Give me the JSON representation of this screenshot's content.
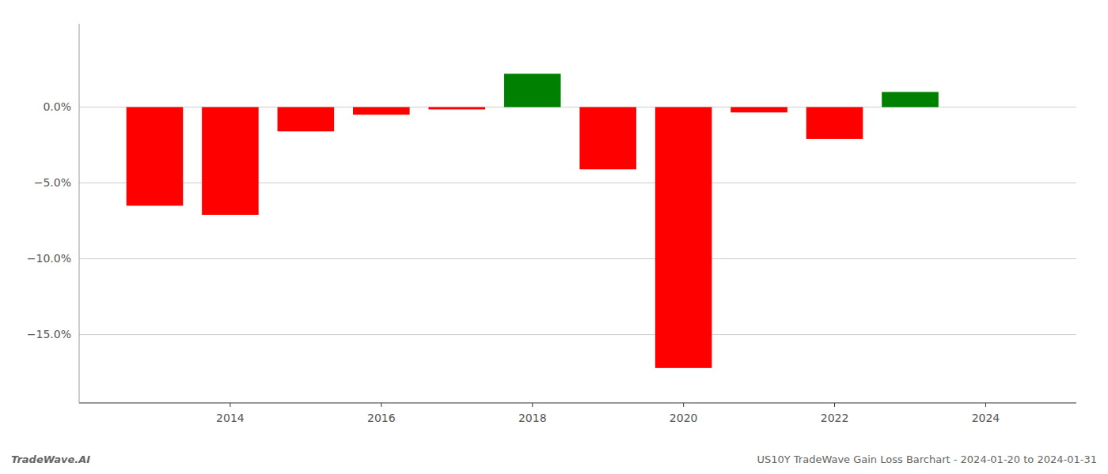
{
  "chart_data": {
    "type": "bar",
    "x": [
      2013,
      2014,
      2015,
      2016,
      2017,
      2018,
      2019,
      2020,
      2021,
      2022,
      2023
    ],
    "values": [
      -6.5,
      -7.1,
      -1.6,
      -0.5,
      -0.15,
      2.2,
      -4.1,
      -17.2,
      -0.35,
      -2.1,
      1.0
    ],
    "colors": [
      "#ff0000",
      "#ff0000",
      "#ff0000",
      "#ff0000",
      "#ff0000",
      "#008000",
      "#ff0000",
      "#ff0000",
      "#ff0000",
      "#ff0000",
      "#008000"
    ],
    "xlim": [
      2012.0,
      2025.2
    ],
    "xticks": [
      2014,
      2016,
      2018,
      2020,
      2022,
      2024
    ],
    "ylim": [
      -19.5,
      5.5
    ],
    "yticks": [
      {
        "value": 0.0,
        "label": "0.0%"
      },
      {
        "value": -5.0,
        "label": "−5.0%"
      },
      {
        "value": -10.0,
        "label": "−10.0%"
      },
      {
        "value": -15.0,
        "label": "−15.0%"
      }
    ],
    "grid": true,
    "annotations": [
      "TradeWave.AI",
      "US10Y TradeWave Gain Loss Barchart - 2024-01-20 to 2024-01-31"
    ]
  }
}
